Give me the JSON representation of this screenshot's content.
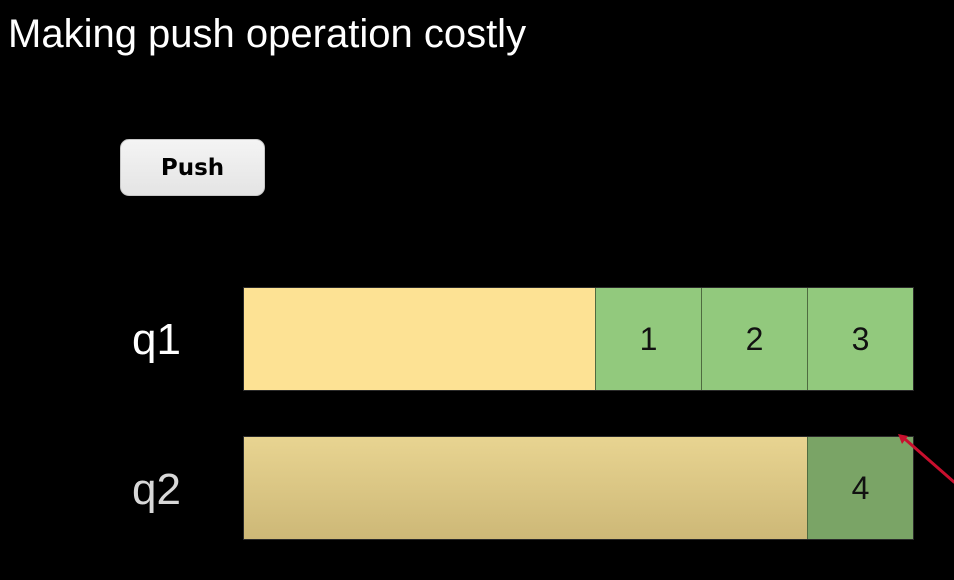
{
  "title": "Making push operation costly",
  "push_button": {
    "label": "Push"
  },
  "queues": [
    {
      "label": "q1",
      "items": [
        "1",
        "2",
        "3"
      ]
    },
    {
      "label": "q2",
      "items": [
        "4"
      ]
    }
  ],
  "colors": {
    "background": "#000000",
    "queue_empty_q1": "#fde294",
    "queue_empty_q2": "#d9c585",
    "cell_q1": "#92c97d",
    "cell_q2": "#7aa466",
    "pointer": "#c8102e"
  }
}
